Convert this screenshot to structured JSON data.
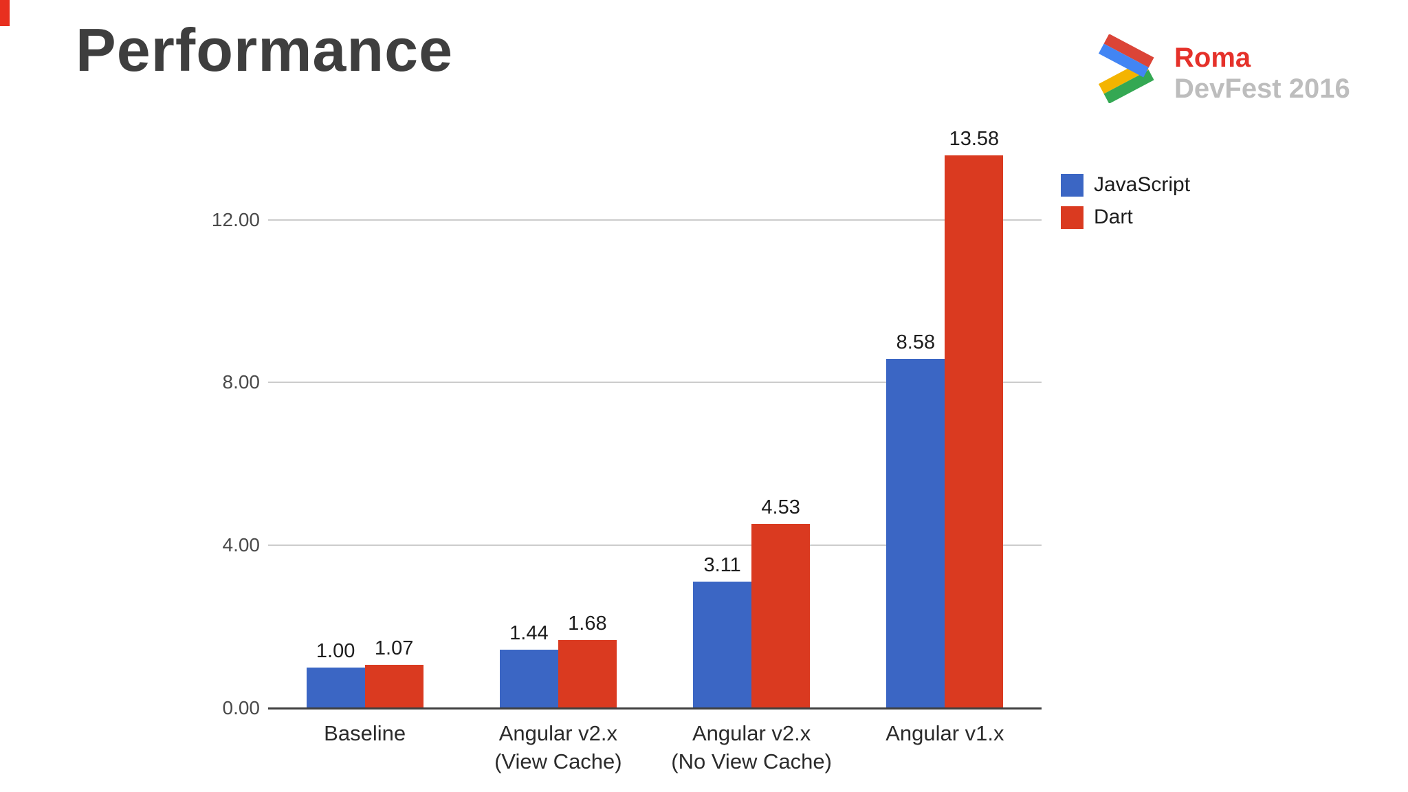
{
  "slide": {
    "title": "Performance",
    "background_color": "#ffffff",
    "corner_mark_color": "#e8301f",
    "title_color": "#3e3e3e"
  },
  "logo": {
    "line1": "Roma",
    "line2": "DevFest 2016",
    "line1_color": "#e5312a",
    "line2_color": "#bdbdbd",
    "chevron": {
      "blue": "#4285F4",
      "red": "#DB4437",
      "green": "#34A853",
      "yellow": "#F4B400"
    }
  },
  "chart_data": {
    "type": "bar",
    "categories": [
      [
        "Baseline"
      ],
      [
        "Angular v2.x",
        "(View Cache)"
      ],
      [
        "Angular v2.x",
        "(No View Cache)"
      ],
      [
        "Angular v1.x"
      ]
    ],
    "series": [
      {
        "name": "JavaScript",
        "color": "#3B66C4",
        "values": [
          1.0,
          1.44,
          3.11,
          8.58
        ],
        "value_labels": [
          "1.00",
          "1.44",
          "3.11",
          "8.58"
        ]
      },
      {
        "name": "Dart",
        "color": "#DA3A20",
        "values": [
          1.07,
          1.68,
          4.53,
          13.58
        ],
        "value_labels": [
          "1.07",
          "1.68",
          "4.53",
          "13.58"
        ]
      }
    ],
    "yticks": [
      {
        "value": 0,
        "label": "0.00"
      },
      {
        "value": 4,
        "label": "4.00"
      },
      {
        "value": 8,
        "label": "8.00"
      },
      {
        "value": 12,
        "label": "12.00"
      }
    ],
    "ylim": [
      0,
      14.02
    ],
    "grid": true,
    "legend_position": "top-right",
    "title": "",
    "xlabel": "",
    "ylabel": ""
  }
}
